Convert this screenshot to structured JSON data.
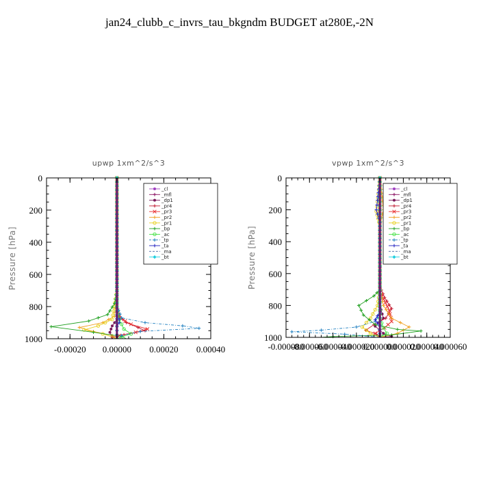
{
  "title": "jan24_clubb_c_invrs_tau_bkgndm  BUDGET at280E,-2N",
  "chart_data": [
    {
      "type": "line",
      "title": "upwp   1xm^2/s^3",
      "ylabel": "Pressure [hPa]",
      "xlabel": "",
      "xlim": [
        -0.0003,
        0.0004
      ],
      "ylim": [
        1000,
        0
      ],
      "xticks": [
        -0.0002,
        0.0,
        0.0002,
        0.0004
      ],
      "xtick_labels": [
        "-0.00020",
        "0.00000",
        "0.00020",
        "0.00040"
      ],
      "yticks": [
        0,
        200,
        400,
        600,
        800,
        1000
      ],
      "ytick_labels": [
        "0",
        "200",
        "400",
        "600",
        "800",
        "1000"
      ],
      "legend_position": "top-right",
      "series": [
        {
          "name": "_cl",
          "color": "#a040c0",
          "marker": "dot",
          "dash": "",
          "points": [
            [
              0,
              0
            ],
            [
              0,
              200
            ],
            [
              0,
              400
            ],
            [
              0,
              600
            ],
            [
              0,
              800
            ],
            [
              0,
              1000
            ]
          ]
        },
        {
          "name": "_mfl",
          "color": "#8a1060",
          "marker": "plus",
          "dash": "",
          "points": [
            [
              0,
              0
            ],
            [
              0,
              200
            ],
            [
              0,
              400
            ],
            [
              0,
              600
            ],
            [
              0,
              800
            ],
            [
              0,
              1000
            ]
          ]
        },
        {
          "name": "_dp1",
          "color": "#7a1a5a",
          "marker": "dot",
          "dash": "",
          "points": [
            [
              0,
              0
            ],
            [
              0,
              200
            ],
            [
              0,
              400
            ],
            [
              0,
              600
            ],
            [
              0,
              700
            ],
            [
              0,
              800
            ],
            [
              0,
              880
            ],
            [
              -2e-05,
              920
            ],
            [
              -3e-05,
              960
            ],
            [
              -2e-05,
              990
            ],
            [
              0,
              1000
            ]
          ]
        },
        {
          "name": "_pr4",
          "color": "#c01830",
          "marker": "plus",
          "dash": "",
          "points": [
            [
              0,
              0
            ],
            [
              0,
              600
            ],
            [
              0,
              800
            ],
            [
              1e-05,
              860
            ],
            [
              4e-05,
              900
            ],
            [
              9e-05,
              930
            ],
            [
              0.00012,
              950
            ],
            [
              3e-05,
              975
            ],
            [
              -2e-05,
              990
            ],
            [
              0,
              1000
            ]
          ]
        },
        {
          "name": "_pr3",
          "color": "#e83030",
          "marker": "cross",
          "dash": "",
          "points": [
            [
              0,
              0
            ],
            [
              0,
              600
            ],
            [
              0,
              800
            ],
            [
              1e-05,
              870
            ],
            [
              6e-05,
              910
            ],
            [
              0.00013,
              940
            ],
            [
              8e-05,
              960
            ],
            [
              1e-05,
              980
            ],
            [
              0,
              1000
            ]
          ]
        },
        {
          "name": "_pr2",
          "color": "#f0a020",
          "marker": "plus",
          "dash": "",
          "points": [
            [
              0,
              0
            ],
            [
              0,
              700
            ],
            [
              -1e-05,
              860
            ],
            [
              -6e-05,
              900
            ],
            [
              -0.00016,
              930
            ],
            [
              -0.0001,
              955
            ],
            [
              -2e-05,
              980
            ],
            [
              0,
              1000
            ]
          ]
        },
        {
          "name": "_pr1",
          "color": "#e8d020",
          "marker": "circle",
          "dash": "",
          "points": [
            [
              0,
              0
            ],
            [
              0,
              700
            ],
            [
              -2e-05,
              880
            ],
            [
              -8e-05,
              920
            ],
            [
              -0.00014,
              945
            ],
            [
              -6e-05,
              970
            ],
            [
              0,
              1000
            ]
          ]
        },
        {
          "name": "_bp",
          "color": "#20a020",
          "marker": "plus",
          "dash": "",
          "points": [
            [
              0,
              0
            ],
            [
              0,
              700
            ],
            [
              -1e-05,
              780
            ],
            [
              -4e-05,
              850
            ],
            [
              -0.00012,
              890
            ],
            [
              -0.00028,
              925
            ],
            [
              -0.0001,
              960
            ],
            [
              2e-05,
              985
            ],
            [
              4e-05,
              1000
            ]
          ]
        },
        {
          "name": "_ac",
          "color": "#40e040",
          "marker": "circle",
          "dash": "",
          "points": [
            [
              0,
              0
            ],
            [
              0,
              800
            ],
            [
              1e-05,
              880
            ],
            [
              3e-05,
              940
            ],
            [
              6e-05,
              970
            ],
            [
              2e-05,
              990
            ],
            [
              0,
              1000
            ]
          ]
        },
        {
          "name": "_tp",
          "color": "#2080c0",
          "marker": "plus",
          "dash": "dash",
          "points": [
            [
              0,
              0
            ],
            [
              0,
              800
            ],
            [
              2e-05,
              870
            ],
            [
              0.00012,
              900
            ],
            [
              0.00028,
              920
            ],
            [
              0.00035,
              935
            ],
            [
              0.0001,
              955
            ],
            [
              2e-05,
              980
            ],
            [
              0,
              1000
            ]
          ]
        },
        {
          "name": "_ta",
          "color": "#2020c0",
          "marker": "plus",
          "dash": "",
          "points": [
            [
              0,
              0
            ],
            [
              0,
              860
            ],
            [
              1e-05,
              880
            ],
            [
              1e-05,
              900
            ],
            [
              0,
              920
            ],
            [
              0,
              1000
            ]
          ]
        },
        {
          "name": "_ma",
          "color": "#4060a0",
          "marker": "none",
          "dash": "dash",
          "points": [
            [
              0,
              0
            ],
            [
              0,
              1000
            ]
          ]
        },
        {
          "name": "_bt",
          "color": "#20d0e0",
          "marker": "diamond",
          "dash": "",
          "points": [
            [
              0,
              0
            ],
            [
              0,
              1000
            ]
          ]
        }
      ]
    },
    {
      "type": "line",
      "title": "vpwp   1xm^2/s^3",
      "ylabel": "Pressure [hPa]",
      "xlabel": "",
      "xlim": [
        -8e-05,
        6e-05
      ],
      "ylim": [
        1000,
        0
      ],
      "xticks": [
        -8e-05,
        -6e-05,
        -4e-05,
        -2e-05,
        0.0,
        2e-05,
        4e-05,
        6e-05
      ],
      "xtick_labels": [
        "-0.000080",
        "-0.000060",
        "-0.000040",
        "-0.000020",
        "0.000000",
        "0.000020",
        "0.000040",
        "0.000060"
      ],
      "yticks": [
        0,
        200,
        400,
        600,
        800,
        1000
      ],
      "ytick_labels": [
        "0",
        "200",
        "400",
        "600",
        "800",
        "1000"
      ],
      "legend_position": "top-right",
      "series": [
        {
          "name": "_cl",
          "color": "#a040c0",
          "marker": "dot",
          "dash": "",
          "points": [
            [
              0,
              0
            ],
            [
              0,
              200
            ],
            [
              0,
              400
            ],
            [
              0,
              600
            ],
            [
              0,
              800
            ],
            [
              0,
              1000
            ]
          ]
        },
        {
          "name": "_mfl",
          "color": "#8a1060",
          "marker": "plus",
          "dash": "",
          "points": [
            [
              0,
              0
            ],
            [
              0,
              200
            ],
            [
              0,
              400
            ],
            [
              0,
              600
            ],
            [
              0,
              800
            ],
            [
              0,
              1000
            ]
          ]
        },
        {
          "name": "_dp1",
          "color": "#7a1a5a",
          "marker": "dot",
          "dash": "",
          "points": [
            [
              0,
              0
            ],
            [
              0,
              600
            ],
            [
              0,
              800
            ],
            [
              3e-06,
              880
            ],
            [
              -4e-06,
              930
            ],
            [
              3e-06,
              975
            ],
            [
              1e-05,
              995
            ],
            [
              0,
              1000
            ]
          ]
        },
        {
          "name": "_pr4",
          "color": "#c01830",
          "marker": "plus",
          "dash": "",
          "points": [
            [
              0,
              0
            ],
            [
              0,
              680
            ],
            [
              4e-06,
              750
            ],
            [
              1e-05,
              820
            ],
            [
              5e-06,
              880
            ],
            [
              -5e-06,
              920
            ],
            [
              -1.2e-05,
              955
            ],
            [
              -3e-06,
              980
            ],
            [
              0,
              1000
            ]
          ]
        },
        {
          "name": "_pr3",
          "color": "#e83030",
          "marker": "cross",
          "dash": "",
          "points": [
            [
              0,
              0
            ],
            [
              0,
              700
            ],
            [
              3e-06,
              760
            ],
            [
              8e-06,
              830
            ],
            [
              1e-05,
              900
            ],
            [
              4e-06,
              940
            ],
            [
              -4e-06,
              975
            ],
            [
              0,
              1000
            ]
          ]
        },
        {
          "name": "_pr2",
          "color": "#f0a020",
          "marker": "plus",
          "dash": "",
          "points": [
            [
              0,
              0
            ],
            [
              2e-06,
              120
            ],
            [
              3e-06,
              200
            ],
            [
              0,
              300
            ],
            [
              0,
              700
            ],
            [
              3e-06,
              800
            ],
            [
              1e-05,
              880
            ],
            [
              2.5e-05,
              935
            ],
            [
              1.5e-05,
              975
            ],
            [
              0,
              1000
            ]
          ]
        },
        {
          "name": "_pr1",
          "color": "#e8d020",
          "marker": "circle",
          "dash": "",
          "points": [
            [
              0,
              0
            ],
            [
              -2e-06,
              150
            ],
            [
              -3e-06,
              210
            ],
            [
              0,
              300
            ],
            [
              0,
              700
            ],
            [
              -2e-06,
              800
            ],
            [
              -8e-06,
              880
            ],
            [
              -1.5e-05,
              935
            ],
            [
              -8e-06,
              975
            ],
            [
              0,
              1000
            ]
          ]
        },
        {
          "name": "_bp",
          "color": "#20a020",
          "marker": "plus",
          "dash": "",
          "points": [
            [
              0,
              0
            ],
            [
              0,
              700
            ],
            [
              -5e-06,
              740
            ],
            [
              -1.8e-05,
              800
            ],
            [
              -1.4e-05,
              860
            ],
            [
              -4e-06,
              920
            ],
            [
              1.5e-05,
              950
            ],
            [
              3.5e-05,
              960
            ],
            [
              1e-05,
              985
            ],
            [
              -4e-05,
              995
            ],
            [
              -5e-05,
              1000
            ]
          ]
        },
        {
          "name": "_ac",
          "color": "#40e040",
          "marker": "circle",
          "dash": "",
          "points": [
            [
              0,
              0
            ],
            [
              0,
              880
            ],
            [
              3e-06,
              940
            ],
            [
              6e-06,
              975
            ],
            [
              0,
              1000
            ]
          ]
        },
        {
          "name": "_tp",
          "color": "#2080c0",
          "marker": "plus",
          "dash": "dash",
          "points": [
            [
              0,
              0
            ],
            [
              0,
              850
            ],
            [
              -4e-06,
              900
            ],
            [
              -2e-05,
              935
            ],
            [
              -5e-05,
              955
            ],
            [
              -7.5e-05,
              965
            ],
            [
              -3e-05,
              980
            ],
            [
              0,
              1000
            ]
          ]
        },
        {
          "name": "_ta",
          "color": "#2020c0",
          "marker": "plus",
          "dash": "",
          "points": [
            [
              0,
              0
            ],
            [
              -2e-06,
              140
            ],
            [
              -3e-06,
              200
            ],
            [
              0,
              280
            ],
            [
              0,
              840
            ],
            [
              -4e-06,
              890
            ],
            [
              0,
              930
            ],
            [
              0,
              1000
            ]
          ]
        },
        {
          "name": "_ma",
          "color": "#4060a0",
          "marker": "none",
          "dash": "dash",
          "points": [
            [
              0,
              0
            ],
            [
              0,
              1000
            ]
          ]
        },
        {
          "name": "_bt",
          "color": "#20d0e0",
          "marker": "diamond",
          "dash": "",
          "points": [
            [
              0,
              0
            ],
            [
              0,
              1000
            ]
          ]
        }
      ]
    }
  ]
}
